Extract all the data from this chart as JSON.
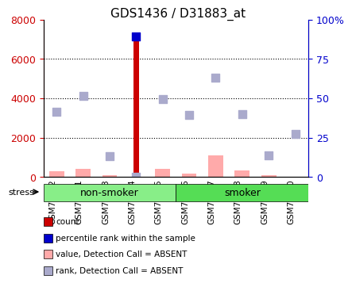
{
  "title": "GDS1436 / D31883_at",
  "samples": [
    "GSM71942",
    "GSM71991",
    "GSM72243",
    "GSM72244",
    "GSM72245",
    "GSM72246",
    "GSM72247",
    "GSM72248",
    "GSM72249",
    "GSM72250"
  ],
  "count_values": [
    0,
    0,
    0,
    6950,
    0,
    0,
    0,
    0,
    0,
    0
  ],
  "absent_value_bars": [
    280,
    430,
    100,
    0,
    420,
    175,
    1100,
    340,
    110,
    30
  ],
  "rank_dots": [
    3300,
    4100,
    1050,
    0,
    3950,
    3150,
    5050,
    3200,
    1100,
    2200
  ],
  "rank_dot_absent": [
    true,
    true,
    true,
    false,
    true,
    true,
    true,
    true,
    true,
    true
  ],
  "percentile_dot_gsm72244": 7150,
  "ylim": [
    0,
    8000
  ],
  "yticks": [
    0,
    2000,
    4000,
    6000,
    8000
  ],
  "ytick_labels_left": [
    "0",
    "2000",
    "4000",
    "6000",
    "8000"
  ],
  "ytick_labels_right": [
    "0",
    "25",
    "50",
    "75",
    "100%"
  ],
  "right_ylim": [
    0,
    100
  ],
  "group_nonsmoker": [
    "GSM71942",
    "GSM71991",
    "GSM72243",
    "GSM72244",
    "GSM72245"
  ],
  "group_smoker": [
    "GSM72246",
    "GSM72247",
    "GSM72248",
    "GSM72249",
    "GSM72250"
  ],
  "color_count": "#cc0000",
  "color_percentile": "#0000cc",
  "color_absent_value": "#ffaaaa",
  "color_absent_rank": "#aaaacc",
  "color_nonsmoker": "#88ee88",
  "color_smoker": "#55dd55",
  "color_left_axis": "#cc0000",
  "color_right_axis": "#0000cc",
  "bar_width": 0.35,
  "dot_size": 60,
  "legend_items": [
    {
      "label": "count",
      "color": "#cc0000",
      "type": "square"
    },
    {
      "label": "percentile rank within the sample",
      "color": "#0000cc",
      "type": "square"
    },
    {
      "label": "value, Detection Call = ABSENT",
      "color": "#ffaaaa",
      "type": "square"
    },
    {
      "label": "rank, Detection Call = ABSENT",
      "color": "#aaaacc",
      "type": "square"
    }
  ]
}
